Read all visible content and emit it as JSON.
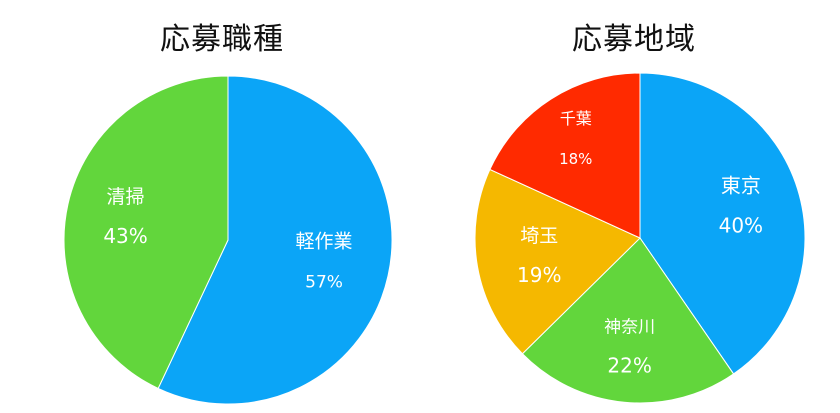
{
  "chart_data": [
    {
      "type": "pie",
      "title": "応募職種",
      "slices": [
        {
          "label": "軽作業",
          "value": 57,
          "value_label": "57%",
          "color": "#0ba5f7"
        },
        {
          "label": "清掃",
          "value": 43,
          "value_label": "43%",
          "color": "#62d63c"
        }
      ]
    },
    {
      "type": "pie",
      "title": "応募地域",
      "slices": [
        {
          "label": "東京",
          "value": 40,
          "value_label": "40%",
          "color": "#0ba5f7"
        },
        {
          "label": "神奈川",
          "value": 22,
          "value_label": "22%",
          "color": "#62d63c"
        },
        {
          "label": "埼玉",
          "value": 19,
          "value_label": "19%",
          "color": "#f5b800"
        },
        {
          "label": "千葉",
          "value": 18,
          "value_label": "18%",
          "color": "#ff2a00"
        }
      ]
    }
  ]
}
